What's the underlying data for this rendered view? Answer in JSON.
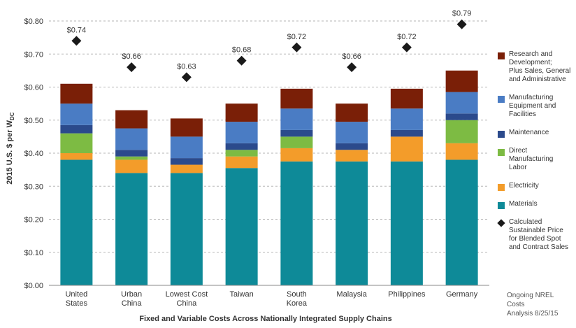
{
  "chart_data": {
    "type": "bar",
    "stacked": true,
    "title": "",
    "xlabel": "Fixed and Variable Costs Across Nationally Integrated Supply Chains",
    "ylabel": "2015 U.S. $ per W",
    "ylabel_subscript": "DC",
    "ylim": [
      0,
      0.8
    ],
    "yticks": [
      "$0.00",
      "$0.10",
      "$0.20",
      "$0.30",
      "$0.40",
      "$0.50",
      "$0.60",
      "$0.70",
      "$0.80"
    ],
    "grid": true,
    "legend_position": "right",
    "categories": [
      [
        "United",
        "States"
      ],
      [
        "Urban",
        "China"
      ],
      [
        "Lowest Cost",
        "China"
      ],
      [
        "Taiwan"
      ],
      [
        "South",
        "Korea"
      ],
      [
        "Malaysia"
      ],
      [
        "Philippines"
      ],
      [
        "Germany"
      ]
    ],
    "series": [
      {
        "name": "Materials",
        "color": "#0e8a98",
        "values": [
          0.38,
          0.34,
          0.34,
          0.355,
          0.375,
          0.375,
          0.375,
          0.38
        ]
      },
      {
        "name": "Electricity",
        "color": "#f39c2a",
        "values": [
          0.02,
          0.04,
          0.025,
          0.035,
          0.04,
          0.035,
          0.075,
          0.05
        ]
      },
      {
        "name": "Direct Manufacturing Labor",
        "color": "#7dbb43",
        "values": [
          0.06,
          0.01,
          0.0,
          0.02,
          0.035,
          0.0,
          0.0,
          0.07
        ]
      },
      {
        "name": "Maintenance",
        "color": "#2b4a8c",
        "values": [
          0.025,
          0.02,
          0.02,
          0.02,
          0.02,
          0.02,
          0.02,
          0.02
        ]
      },
      {
        "name": "Manufacturing Equipment and Facilities",
        "color": "#4a7cc4",
        "values": [
          0.065,
          0.065,
          0.065,
          0.065,
          0.065,
          0.065,
          0.065,
          0.065
        ]
      },
      {
        "name": "Research and Development; Plus Sales, General and Administrative",
        "color": "#7a1f07",
        "values": [
          0.06,
          0.055,
          0.055,
          0.055,
          0.06,
          0.055,
          0.06,
          0.065
        ]
      }
    ],
    "price_series": {
      "name": "Calculated Sustainable Price for Blended Spot and Contract Sales",
      "marker": "diamond",
      "color": "#1a1a1a",
      "values": [
        0.74,
        0.66,
        0.63,
        0.68,
        0.72,
        0.66,
        0.72,
        0.79
      ],
      "labels": [
        "$0.74",
        "$0.66",
        "$0.63",
        "$0.68",
        "$0.72",
        "$0.66",
        "$0.72",
        "$0.79"
      ]
    }
  },
  "legend": [
    {
      "label_lines": [
        "Research and",
        "Development;",
        "Plus Sales, General",
        "and Administrative"
      ],
      "color": "#7a1f07",
      "kind": "box"
    },
    {
      "label_lines": [
        "Manufacturing",
        "Equipment and",
        "Facilities"
      ],
      "color": "#4a7cc4",
      "kind": "box"
    },
    {
      "label_lines": [
        "Maintenance"
      ],
      "color": "#2b4a8c",
      "kind": "box"
    },
    {
      "label_lines": [
        "Direct",
        "Manufacturing",
        "Labor"
      ],
      "color": "#7dbb43",
      "kind": "box"
    },
    {
      "label_lines": [
        "Electricity"
      ],
      "color": "#f39c2a",
      "kind": "box"
    },
    {
      "label_lines": [
        "Materials"
      ],
      "color": "#0e8a98",
      "kind": "box"
    },
    {
      "label_lines": [
        "Calculated",
        "Sustainable Price",
        "for Blended Spot",
        "and Contract Sales"
      ],
      "color": "#1a1a1a",
      "kind": "diamond"
    }
  ],
  "footnote": [
    "Ongoing NREL Costs",
    "Analysis 8/25/15"
  ]
}
